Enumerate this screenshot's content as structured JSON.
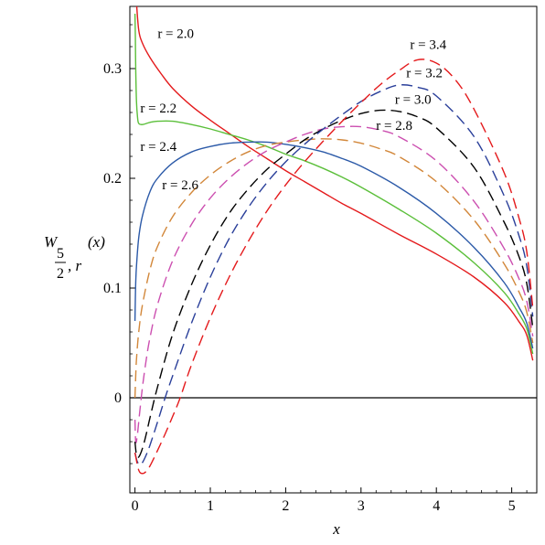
{
  "chart_data": {
    "type": "line",
    "title": "",
    "xlabel": "x",
    "ylabel": {
      "func": "W",
      "sub_num": "5",
      "sub_den": "2",
      "sub_rest": ", r",
      "arg": "(x)"
    },
    "xlim": [
      0,
      5.3
    ],
    "ylim": [
      -0.07,
      0.35
    ],
    "x_ticks": [
      0,
      1,
      2,
      3,
      4,
      5
    ],
    "y_ticks": [
      0,
      0.1,
      0.2,
      0.3
    ],
    "x_tick_labels": [
      "0",
      "1",
      "2",
      "3",
      "4",
      "5"
    ],
    "y_tick_labels": [
      "0",
      "0.1",
      "0.2",
      "0.3"
    ],
    "grid": false,
    "legend": "none",
    "series": [
      {
        "name": "r = 2.0",
        "color": "#e41a1c",
        "dashed": false,
        "x": [
          0.02,
          0.05,
          0.1,
          0.2,
          0.35,
          0.5,
          0.75,
          1.0,
          1.25,
          1.5,
          1.75,
          2.0,
          2.25,
          2.5,
          2.75,
          3.0,
          3.5,
          4.0,
          4.5,
          4.9,
          5.1,
          5.2,
          5.28
        ],
        "y": [
          0.36,
          0.335,
          0.323,
          0.31,
          0.295,
          0.282,
          0.266,
          0.253,
          0.241,
          0.229,
          0.218,
          0.207,
          0.197,
          0.187,
          0.177,
          0.168,
          0.149,
          0.131,
          0.11,
          0.087,
          0.069,
          0.057,
          0.034
        ]
      },
      {
        "name": "r = 2.2",
        "color": "#5bbf3a",
        "dashed": false,
        "x": [
          0.0,
          0.005,
          0.01,
          0.02,
          0.035,
          0.05,
          0.1,
          0.2,
          0.3,
          0.5,
          0.75,
          1.0,
          1.25,
          1.5,
          1.75,
          2.0,
          2.25,
          2.5,
          2.75,
          3.0,
          3.5,
          4.0,
          4.5,
          4.9,
          5.1,
          5.2,
          5.28
        ],
        "y": [
          0.35,
          0.33,
          0.3,
          0.27,
          0.255,
          0.25,
          0.249,
          0.251,
          0.252,
          0.252,
          0.249,
          0.245,
          0.24,
          0.235,
          0.229,
          0.222,
          0.216,
          0.209,
          0.201,
          0.192,
          0.172,
          0.15,
          0.123,
          0.096,
          0.076,
          0.063,
          0.04
        ]
      },
      {
        "name": "r = 2.4",
        "color": "#2c5aa8",
        "dashed": false,
        "x": [
          0.0,
          0.005,
          0.01,
          0.02,
          0.05,
          0.1,
          0.2,
          0.3,
          0.5,
          0.75,
          1.0,
          1.25,
          1.5,
          1.75,
          2.0,
          2.25,
          2.5,
          2.75,
          3.0,
          3.5,
          4.0,
          4.5,
          4.9,
          5.1,
          5.2,
          5.28
        ],
        "y": [
          0.07,
          0.09,
          0.105,
          0.12,
          0.146,
          0.166,
          0.188,
          0.2,
          0.214,
          0.224,
          0.229,
          0.232,
          0.233,
          0.233,
          0.231,
          0.228,
          0.224,
          0.218,
          0.211,
          0.192,
          0.168,
          0.137,
          0.105,
          0.082,
          0.068,
          0.045
        ]
      },
      {
        "name": "r = 2.6",
        "color": "#d2873a",
        "dashed": true,
        "x": [
          0.0,
          0.01,
          0.02,
          0.05,
          0.1,
          0.2,
          0.3,
          0.5,
          0.75,
          1.0,
          1.25,
          1.5,
          1.75,
          2.0,
          2.25,
          2.5,
          2.75,
          3.0,
          3.25,
          3.5,
          4.0,
          4.5,
          4.9,
          5.1,
          5.2,
          5.28
        ],
        "y": [
          0.0,
          0.02,
          0.035,
          0.06,
          0.085,
          0.117,
          0.138,
          0.165,
          0.187,
          0.203,
          0.215,
          0.224,
          0.23,
          0.233,
          0.235,
          0.236,
          0.235,
          0.232,
          0.227,
          0.22,
          0.197,
          0.162,
          0.122,
          0.096,
          0.078,
          0.05
        ]
      },
      {
        "name": "r = 2.8",
        "color": "#cc4fb0",
        "dashed": true,
        "x": [
          0.0,
          0.01,
          0.03,
          0.06,
          0.1,
          0.15,
          0.2,
          0.3,
          0.5,
          0.75,
          1.0,
          1.25,
          1.5,
          1.75,
          2.0,
          2.25,
          2.5,
          2.75,
          3.0,
          3.25,
          3.5,
          4.0,
          4.5,
          4.9,
          5.1,
          5.2,
          5.28
        ],
        "y": [
          -0.02,
          -0.04,
          -0.035,
          -0.015,
          0.01,
          0.035,
          0.055,
          0.085,
          0.125,
          0.158,
          0.182,
          0.2,
          0.214,
          0.225,
          0.233,
          0.24,
          0.245,
          0.247,
          0.247,
          0.244,
          0.238,
          0.216,
          0.179,
          0.136,
          0.108,
          0.088,
          0.056
        ]
      },
      {
        "name": "r = 3.0",
        "color": "#000000",
        "dashed": true,
        "x": [
          0.0,
          0.02,
          0.05,
          0.1,
          0.15,
          0.2,
          0.3,
          0.5,
          0.75,
          1.0,
          1.25,
          1.5,
          1.75,
          2.0,
          2.25,
          2.5,
          2.75,
          3.0,
          3.25,
          3.5,
          3.75,
          4.0,
          4.5,
          4.9,
          5.1,
          5.2,
          5.28
        ],
        "y": [
          -0.04,
          -0.052,
          -0.054,
          -0.046,
          -0.033,
          -0.018,
          0.01,
          0.058,
          0.103,
          0.139,
          0.168,
          0.19,
          0.208,
          0.222,
          0.235,
          0.245,
          0.253,
          0.259,
          0.262,
          0.261,
          0.256,
          0.246,
          0.21,
          0.16,
          0.128,
          0.104,
          0.064
        ]
      },
      {
        "name": "r = 3.2",
        "color": "#2a3f9a",
        "dashed": true,
        "x": [
          0.0,
          0.03,
          0.07,
          0.1,
          0.15,
          0.2,
          0.3,
          0.4,
          0.5,
          0.75,
          1.0,
          1.25,
          1.5,
          1.75,
          2.0,
          2.25,
          2.5,
          2.75,
          3.0,
          3.25,
          3.5,
          3.75,
          4.0,
          4.5,
          4.9,
          5.1,
          5.2,
          5.28
        ],
        "y": [
          -0.05,
          -0.058,
          -0.061,
          -0.059,
          -0.052,
          -0.043,
          -0.022,
          0.0,
          0.02,
          0.068,
          0.11,
          0.145,
          0.173,
          0.196,
          0.215,
          0.231,
          0.245,
          0.258,
          0.27,
          0.279,
          0.285,
          0.283,
          0.275,
          0.238,
          0.184,
          0.147,
          0.12,
          0.074
        ]
      },
      {
        "name": "r = 3.4",
        "color": "#e41a1c",
        "dashed": true,
        "x": [
          0.0,
          0.05,
          0.1,
          0.15,
          0.2,
          0.3,
          0.4,
          0.5,
          0.6,
          0.75,
          1.0,
          1.25,
          1.5,
          1.75,
          2.0,
          2.25,
          2.5,
          2.75,
          3.0,
          3.25,
          3.5,
          3.75,
          4.0,
          4.25,
          4.5,
          4.9,
          5.1,
          5.2,
          5.28
        ],
        "y": [
          -0.05,
          -0.066,
          -0.069,
          -0.067,
          -0.062,
          -0.048,
          -0.033,
          -0.017,
          0.0,
          0.03,
          0.073,
          0.11,
          0.142,
          0.17,
          0.194,
          0.215,
          0.234,
          0.252,
          0.269,
          0.285,
          0.298,
          0.308,
          0.305,
          0.29,
          0.263,
          0.205,
          0.163,
          0.133,
          0.082
        ]
      }
    ],
    "labels": [
      {
        "text": "r = 2.0",
        "x": 0.3,
        "y": 0.328
      },
      {
        "text": "r = 2.2",
        "x": 0.07,
        "y": 0.26
      },
      {
        "text": "r = 2.4",
        "x": 0.07,
        "y": 0.225
      },
      {
        "text": "r = 2.6",
        "x": 0.36,
        "y": 0.19
      },
      {
        "text": "r = 3.4",
        "x": 3.65,
        "y": 0.318
      },
      {
        "text": "r = 3.2",
        "x": 3.6,
        "y": 0.292
      },
      {
        "text": "r = 3.0",
        "x": 3.45,
        "y": 0.268
      },
      {
        "text": "r = 2.8",
        "x": 3.2,
        "y": 0.244
      }
    ]
  }
}
